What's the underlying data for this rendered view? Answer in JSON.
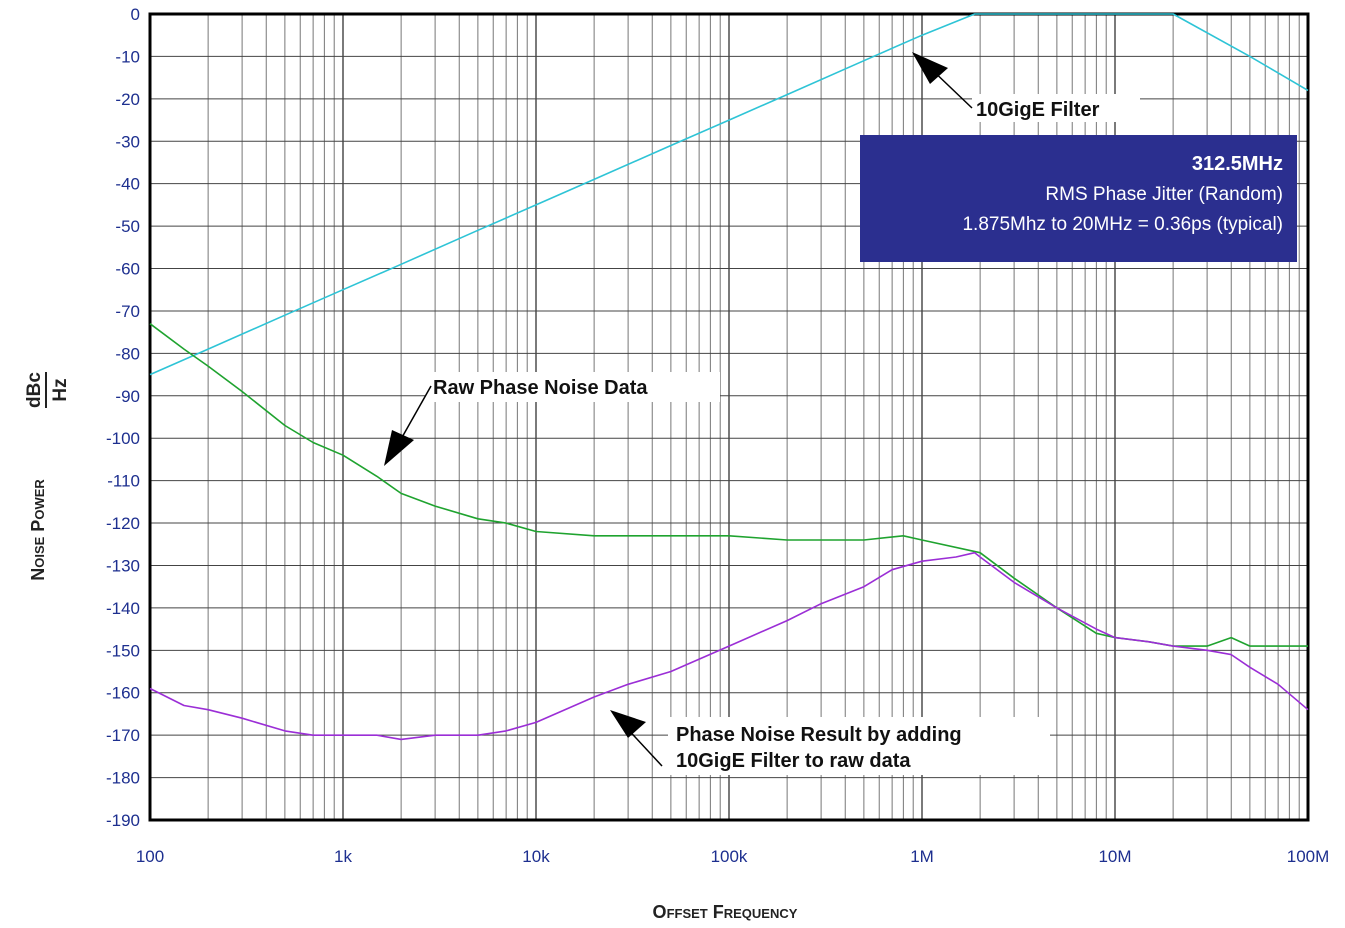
{
  "chart_data": {
    "type": "line",
    "xscale": "log",
    "xlim": [
      100,
      100000000
    ],
    "ylim": [
      -190,
      0
    ],
    "grid": true,
    "xticks": [
      {
        "value": 100,
        "label": "100"
      },
      {
        "value": 1000,
        "label": "1k"
      },
      {
        "value": 10000,
        "label": "10k"
      },
      {
        "value": 100000,
        "label": "100k"
      },
      {
        "value": 1000000,
        "label": "1M"
      },
      {
        "value": 10000000,
        "label": "10M"
      },
      {
        "value": 100000000,
        "label": "100M"
      }
    ],
    "yticks": [
      "0",
      "-10",
      "-20",
      "-30",
      "-40",
      "-50",
      "-60",
      "-70",
      "-80",
      "-90",
      "-100",
      "-110",
      "-120",
      "-130",
      "-140",
      "-150",
      "-160",
      "-170",
      "-180",
      "-190"
    ],
    "xlabel": "Offset Frequency",
    "ylabel": {
      "main": "Noise Power",
      "unit_num": "dBc",
      "unit_den": "Hz"
    },
    "series": [
      {
        "color": "#2ec4d6",
        "x": [
          100,
          200,
          500,
          1000,
          2000,
          5000,
          10000,
          20000,
          50000,
          100000,
          200000,
          500000,
          1000000,
          1875000,
          2000000,
          5000000,
          10000000,
          20000000,
          50000000,
          100000000
        ],
        "y": [
          -85,
          -79,
          -71,
          -65,
          -59,
          -51,
          -45,
          -39,
          -31,
          -25,
          -19,
          -11,
          -5,
          0,
          0,
          0,
          0,
          0,
          -10,
          -18
        ]
      },
      {
        "color": "#1fa32f",
        "x": [
          100,
          150,
          200,
          300,
          500,
          700,
          1000,
          1500,
          2000,
          3000,
          5000,
          7000,
          10000,
          20000,
          50000,
          100000,
          200000,
          500000,
          800000,
          1000000,
          2000000,
          3000000,
          5000000,
          8000000,
          10000000,
          15000000,
          20000000,
          30000000,
          40000000,
          50000000,
          70000000,
          100000000
        ],
        "y": [
          -73,
          -79,
          -83,
          -89,
          -97,
          -101,
          -104,
          -109,
          -113,
          -116,
          -119,
          -120,
          -122,
          -123,
          -123,
          -123,
          -124,
          -124,
          -123,
          -124,
          -127,
          -133,
          -140,
          -146,
          -147,
          -148,
          -149,
          -149,
          -147,
          -149,
          -149,
          -149
        ]
      },
      {
        "color": "#9b2ed6",
        "x": [
          100,
          150,
          200,
          300,
          500,
          700,
          1000,
          1500,
          2000,
          3000,
          5000,
          7000,
          10000,
          20000,
          30000,
          50000,
          100000,
          200000,
          300000,
          500000,
          700000,
          1000000,
          1500000,
          1875000,
          2000000,
          3000000,
          5000000,
          8000000,
          10000000,
          15000000,
          20000000,
          30000000,
          40000000,
          50000000,
          70000000,
          100000000
        ],
        "y": [
          -159,
          -163,
          -164,
          -166,
          -169,
          -170,
          -170,
          -170,
          -171,
          -170,
          -170,
          -169,
          -167,
          -161,
          -158,
          -155,
          -149,
          -143,
          -139,
          -135,
          -131,
          -129,
          -128,
          -127,
          -128,
          -134,
          -140,
          -145,
          -147,
          -148,
          -149,
          -150,
          -151,
          -154,
          -158,
          -164
        ]
      }
    ],
    "annotations": {
      "filter": "10GigE Filter",
      "raw": "Raw Phase Noise Data",
      "result_line1": "Phase Noise Result by adding",
      "result_line2": "10GigE Filter to raw data"
    },
    "infobox": {
      "title": "312.5MHz",
      "line1": "RMS Phase Jitter  (Random)",
      "line2": "1.875Mhz to 20MHz = 0.36ps (typical)"
    }
  }
}
